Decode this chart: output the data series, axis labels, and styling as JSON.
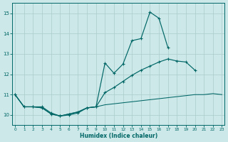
{
  "xlabel": "Humidex (Indice chaleur)",
  "x": [
    0,
    1,
    2,
    3,
    4,
    5,
    6,
    7,
    8,
    9,
    10,
    11,
    12,
    13,
    14,
    15,
    16,
    17,
    18,
    19,
    20,
    21,
    22,
    23
  ],
  "line1_y": [
    11.0,
    10.4,
    10.4,
    10.4,
    10.1,
    9.95,
    10.0,
    10.1,
    10.35,
    10.4,
    12.55,
    12.05,
    12.5,
    13.65,
    13.75,
    15.05,
    14.75,
    13.3,
    null,
    null,
    null,
    null,
    null,
    null
  ],
  "line2_y": [
    11.0,
    10.4,
    10.4,
    10.35,
    10.05,
    9.95,
    10.05,
    10.15,
    10.35,
    10.4,
    11.1,
    11.35,
    11.65,
    11.95,
    12.2,
    12.4,
    12.6,
    12.75,
    12.65,
    12.6,
    12.2,
    null,
    null,
    null
  ],
  "line3_y": [
    11.0,
    10.4,
    10.4,
    10.35,
    10.05,
    9.95,
    10.05,
    10.15,
    10.35,
    10.4,
    10.5,
    10.55,
    10.6,
    10.65,
    10.7,
    10.75,
    10.8,
    10.85,
    10.9,
    10.95,
    11.0,
    11.0,
    11.05,
    11.0
  ],
  "bg_color": "#cce8e8",
  "line_color": "#006666",
  "grid_color": "#aacccc",
  "ylim": [
    9.5,
    15.5
  ],
  "yticks": [
    10,
    11,
    12,
    13,
    14,
    15
  ],
  "xticks": [
    0,
    1,
    2,
    3,
    4,
    5,
    6,
    7,
    8,
    9,
    10,
    11,
    12,
    13,
    14,
    15,
    16,
    17,
    18,
    19,
    20,
    21,
    22,
    23
  ]
}
